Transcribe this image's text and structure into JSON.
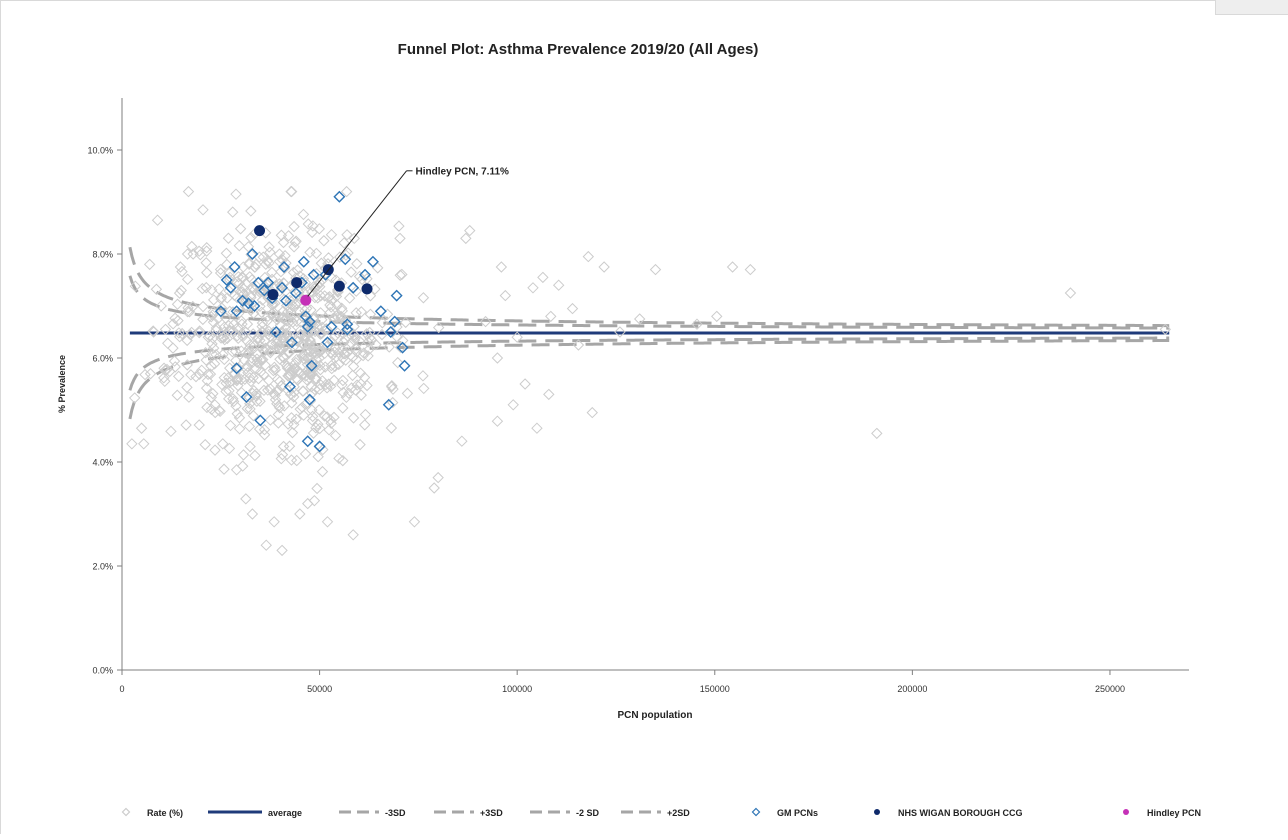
{
  "chart_data": {
    "type": "scatter",
    "title": "Funnel Plot: Asthma Prevalence 2019/20 (All Ages)",
    "xlabel": "PCN population",
    "ylabel": "% Prevalence",
    "xlim": [
      0,
      270000
    ],
    "ylim": [
      0,
      11
    ],
    "x_ticks": [
      0,
      50000,
      100000,
      150000,
      200000,
      250000
    ],
    "x_tick_labels": [
      "0",
      "50000",
      "100000",
      "150000",
      "200000",
      "250000"
    ],
    "y_ticks": [
      0,
      2,
      4,
      6,
      8,
      10
    ],
    "y_tick_labels": [
      "0.0%",
      "2.0%",
      "4.0%",
      "6.0%",
      "8.0%",
      "10.0%"
    ],
    "grid": false,
    "legend_position": "bottom",
    "average": 6.48,
    "series": [
      {
        "name": "Rate (%)",
        "color": "#cccccc",
        "marker": "diamond-open",
        "generated": {
          "count": 760,
          "x_mean": 40000,
          "x_sd": 13000,
          "x_min": 2000,
          "x_max": 95000,
          "y_mean": 6.45,
          "y_sd": 1.05,
          "y_min": 2.2,
          "y_max": 9.2,
          "seed": 11
        },
        "points": [
          [
            2500,
            4.35
          ],
          [
            5500,
            4.35
          ],
          [
            7000,
            7.8
          ],
          [
            8000,
            6.5
          ],
          [
            9000,
            8.65
          ],
          [
            11000,
            6.55
          ],
          [
            15000,
            7.3
          ],
          [
            18000,
            8.0
          ],
          [
            20500,
            8.85
          ],
          [
            21500,
            5.05
          ],
          [
            23500,
            5.1
          ],
          [
            25500,
            4.35
          ],
          [
            29000,
            3.85
          ],
          [
            33000,
            3.0
          ],
          [
            36500,
            2.4
          ],
          [
            38500,
            2.85
          ],
          [
            40500,
            2.3
          ],
          [
            45000,
            3.0
          ],
          [
            47000,
            3.2
          ],
          [
            52000,
            2.85
          ],
          [
            58500,
            2.6
          ],
          [
            74000,
            2.85
          ],
          [
            79000,
            3.5
          ],
          [
            80000,
            3.7
          ],
          [
            86000,
            4.4
          ],
          [
            88000,
            8.45
          ],
          [
            87000,
            8.3
          ],
          [
            92000,
            6.7
          ],
          [
            95000,
            6.0
          ],
          [
            96000,
            7.75
          ],
          [
            97000,
            7.2
          ],
          [
            99000,
            5.1
          ],
          [
            100000,
            6.4
          ],
          [
            102000,
            5.5
          ],
          [
            104000,
            7.35
          ],
          [
            105000,
            4.65
          ],
          [
            106500,
            7.55
          ],
          [
            108000,
            5.3
          ],
          [
            108500,
            6.8
          ],
          [
            110500,
            7.4
          ],
          [
            114000,
            6.95
          ],
          [
            115500,
            6.25
          ],
          [
            118000,
            7.95
          ],
          [
            119000,
            4.95
          ],
          [
            122000,
            7.75
          ],
          [
            126000,
            6.5
          ],
          [
            131000,
            6.75
          ],
          [
            135000,
            7.7
          ],
          [
            145500,
            6.65
          ],
          [
            150500,
            6.8
          ],
          [
            154500,
            7.75
          ],
          [
            159000,
            7.7
          ],
          [
            191000,
            4.55
          ],
          [
            240000,
            7.25
          ],
          [
            264000,
            6.55
          ]
        ]
      },
      {
        "name": "GM PCNs",
        "color": "#2e75b6",
        "marker": "diamond-open",
        "points": [
          [
            25000,
            6.9
          ],
          [
            26500,
            7.5
          ],
          [
            27500,
            7.35
          ],
          [
            28500,
            7.75
          ],
          [
            29000,
            6.9
          ],
          [
            29000,
            5.8
          ],
          [
            30500,
            7.1
          ],
          [
            31500,
            5.25
          ],
          [
            32000,
            7.05
          ],
          [
            33000,
            8.0
          ],
          [
            33500,
            7.0
          ],
          [
            34500,
            7.45
          ],
          [
            35000,
            4.8
          ],
          [
            36000,
            7.3
          ],
          [
            37000,
            7.45
          ],
          [
            38000,
            7.15
          ],
          [
            39000,
            6.5
          ],
          [
            40500,
            7.35
          ],
          [
            41000,
            7.75
          ],
          [
            41500,
            7.1
          ],
          [
            42500,
            5.45
          ],
          [
            43000,
            6.3
          ],
          [
            44000,
            7.25
          ],
          [
            45500,
            7.45
          ],
          [
            46000,
            7.85
          ],
          [
            46500,
            6.8
          ],
          [
            47000,
            6.6
          ],
          [
            47000,
            4.4
          ],
          [
            47500,
            6.7
          ],
          [
            47500,
            5.2
          ],
          [
            48000,
            5.85
          ],
          [
            48500,
            7.6
          ],
          [
            50000,
            4.3
          ],
          [
            51500,
            7.6
          ],
          [
            52000,
            6.3
          ],
          [
            53000,
            6.6
          ],
          [
            55000,
            9.1
          ],
          [
            56500,
            7.9
          ],
          [
            57000,
            6.65
          ],
          [
            57000,
            6.55
          ],
          [
            58500,
            7.35
          ],
          [
            61500,
            7.6
          ],
          [
            63500,
            7.85
          ],
          [
            65500,
            6.9
          ],
          [
            67500,
            5.1
          ],
          [
            68000,
            6.5
          ],
          [
            69000,
            6.7
          ],
          [
            69500,
            7.2
          ],
          [
            71500,
            5.85
          ],
          [
            71000,
            6.2
          ]
        ]
      },
      {
        "name": "NHS WIGAN BOROUGH CCG",
        "color": "#0e2a6b",
        "marker": "circle-filled",
        "points": [
          [
            34800,
            8.45
          ],
          [
            38200,
            7.22
          ],
          [
            44200,
            7.45
          ],
          [
            52200,
            7.7
          ],
          [
            55000,
            7.38
          ],
          [
            62000,
            7.33
          ]
        ]
      },
      {
        "name": "Hindley PCN",
        "color": "#c531b7",
        "marker": "circle-filled",
        "points": [
          [
            46500,
            7.11
          ]
        ]
      }
    ],
    "lines": [
      {
        "name": "average",
        "style": "solid",
        "color": "#1f3b7a"
      },
      {
        "name": "-3SD",
        "style": "dashed",
        "color": "#a6a6a6",
        "k": -3
      },
      {
        "name": "+3SD",
        "style": "dashed",
        "color": "#a6a6a6",
        "k": 3
      },
      {
        "name": "-2 SD",
        "style": "dashed",
        "color": "#a6a6a6",
        "k": -2
      },
      {
        "name": "+2SD",
        "style": "dashed",
        "color": "#a6a6a6",
        "k": 2
      }
    ],
    "annotation": {
      "text": "Hindley PCN, 7.11%",
      "target": [
        46500,
        7.11
      ],
      "label_at": [
        72000,
        9.6
      ]
    },
    "legend": [
      {
        "label": "Rate (%)",
        "symbol": "diamond-open",
        "color": "#cccccc"
      },
      {
        "label": "average",
        "symbol": "line-solid",
        "color": "#1f3b7a"
      },
      {
        "label": "-3SD",
        "symbol": "line-dashed",
        "color": "#a6a6a6"
      },
      {
        "label": "+3SD",
        "symbol": "line-dashed",
        "color": "#a6a6a6"
      },
      {
        "label": "-2 SD",
        "symbol": "line-dashed",
        "color": "#a6a6a6"
      },
      {
        "label": "+2SD",
        "symbol": "line-dashed",
        "color": "#a6a6a6"
      },
      {
        "label": "GM PCNs",
        "symbol": "diamond-open",
        "color": "#2e75b6"
      },
      {
        "label": "NHS WIGAN BOROUGH CCG",
        "symbol": "circle-filled",
        "color": "#0e2a6b"
      },
      {
        "label": "Hindley PCN",
        "symbol": "circle-filled",
        "color": "#c531b7"
      }
    ]
  }
}
